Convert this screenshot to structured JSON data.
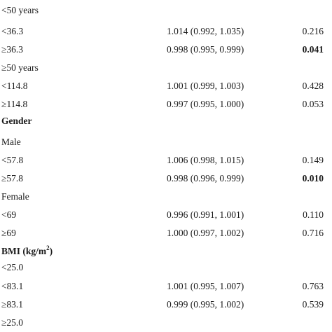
{
  "rows": [
    {
      "label": "<50 years",
      "ci": "",
      "p": "",
      "kind": "sub"
    },
    {
      "label": "<36.3",
      "ci": "1.014 (0.992, 1.035)",
      "p": "0.216",
      "kind": "data"
    },
    {
      "label": "≥36.3",
      "ci": "0.998 (0.995, 0.999)",
      "p": "0.041",
      "kind": "data",
      "p_bold": true
    },
    {
      "label": "≥50 years",
      "ci": "",
      "p": "",
      "kind": "sub"
    },
    {
      "label": "<114.8",
      "ci": "1.001 (0.999, 1.003)",
      "p": "0.428",
      "kind": "data"
    },
    {
      "label": "≥114.8",
      "ci": "0.997 (0.995, 1.000)",
      "p": "0.053",
      "kind": "data"
    },
    {
      "label": "Gender",
      "ci": "",
      "p": "",
      "kind": "header"
    },
    {
      "label": "Male",
      "ci": "",
      "p": "",
      "kind": "sub"
    },
    {
      "label": "<57.8",
      "ci": "1.006 (0.998, 1.015)",
      "p": "0.149",
      "kind": "data"
    },
    {
      "label": "≥57.8",
      "ci": "0.998 (0.996, 0.999)",
      "p": "0.010",
      "kind": "data",
      "p_bold": true
    },
    {
      "label": "Female",
      "ci": "",
      "p": "",
      "kind": "sub"
    },
    {
      "label": "<69",
      "ci": "0.996 (0.991, 1.001)",
      "p": "0.110",
      "kind": "data"
    },
    {
      "label": "≥69",
      "ci": "1.000 (0.997, 1.002)",
      "p": "0.716",
      "kind": "data"
    },
    {
      "label": "BMI (kg/m",
      "label_sup": "2",
      "label_tail": ")",
      "ci": "",
      "p": "",
      "kind": "header"
    },
    {
      "label": "<25.0",
      "ci": "",
      "p": "",
      "kind": "sub"
    },
    {
      "label": "<83.1",
      "ci": "1.001 (0.995, 1.007)",
      "p": "0.763",
      "kind": "data"
    },
    {
      "label": "≥83.1",
      "ci": "0.999 (0.995, 1.002)",
      "p": "0.539",
      "kind": "data"
    },
    {
      "label": "≥25.0",
      "ci": "",
      "p": "",
      "kind": "sub"
    }
  ]
}
